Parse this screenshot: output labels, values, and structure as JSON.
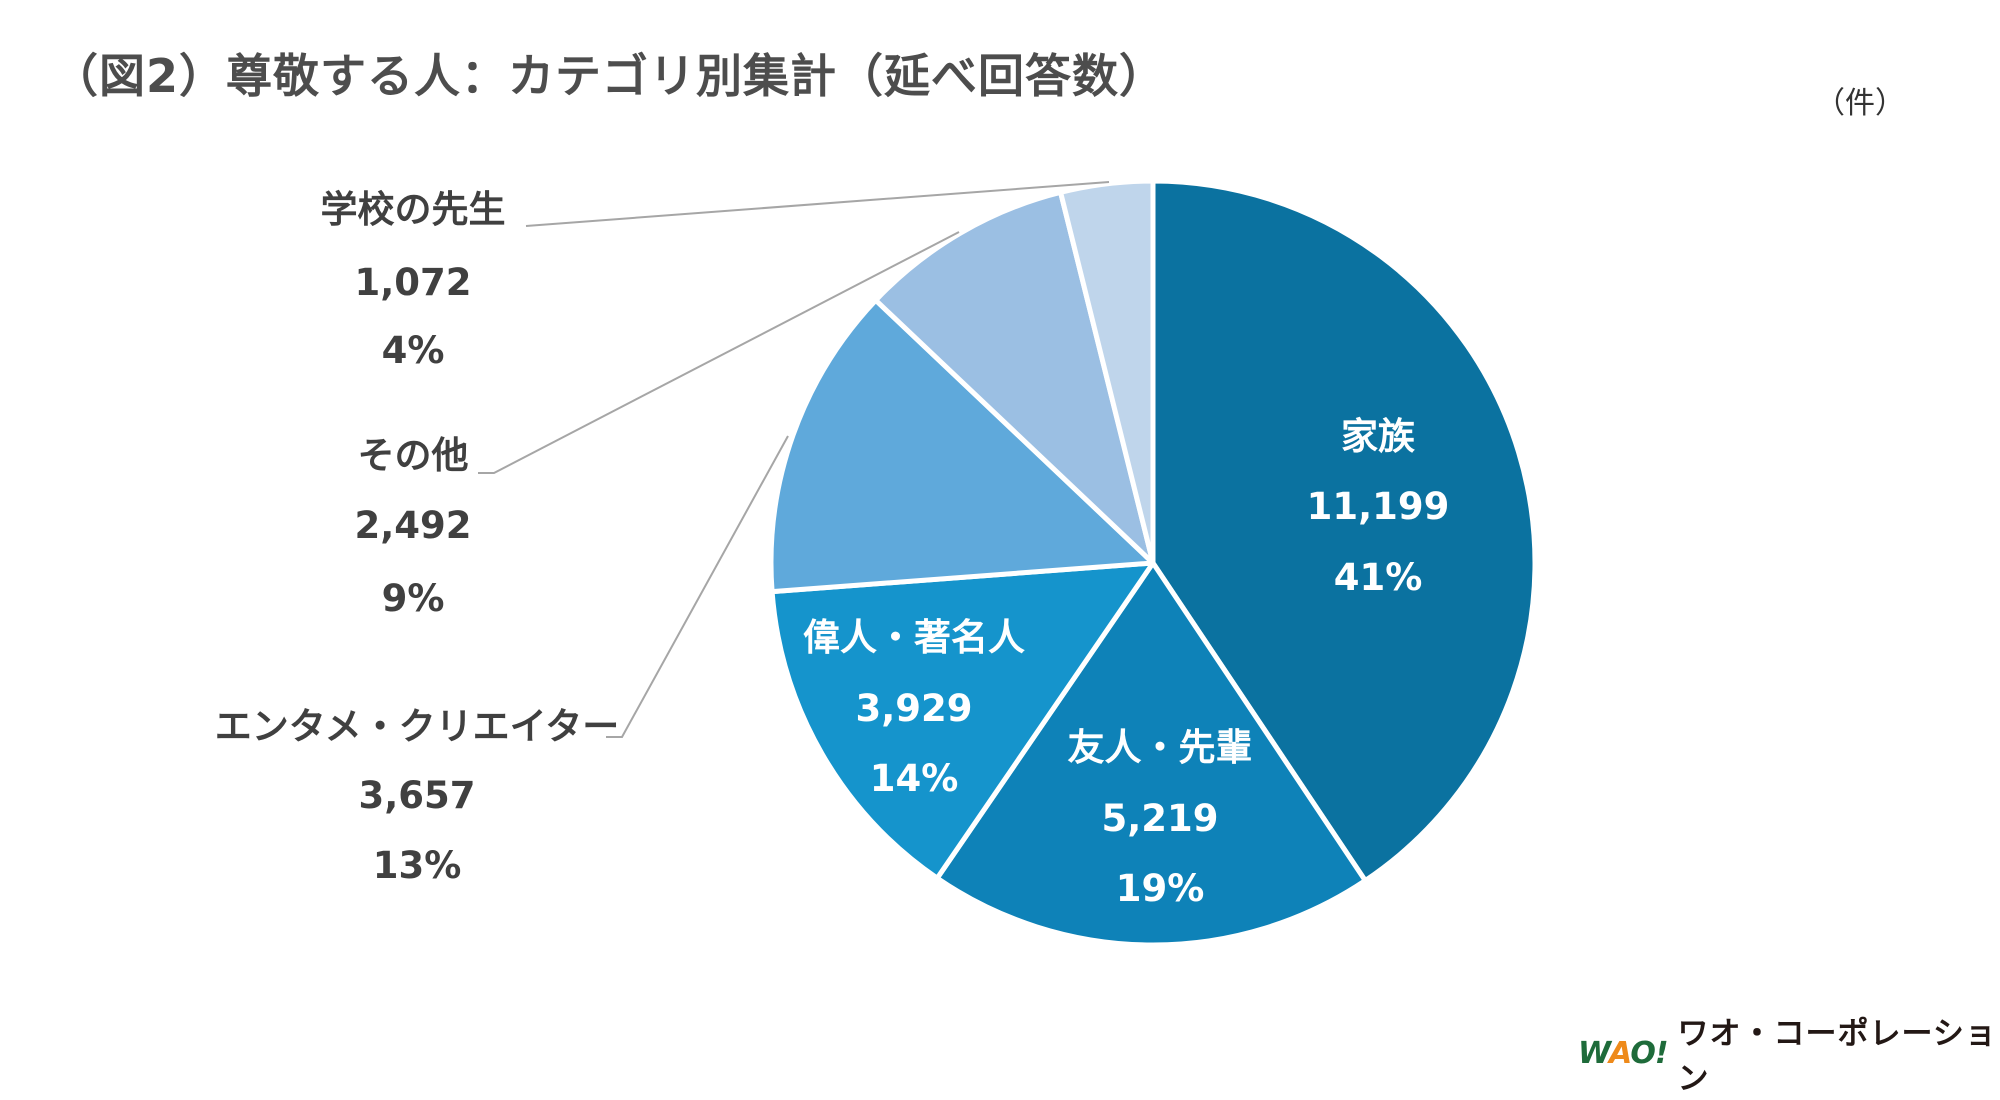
{
  "title": "（図2）尊敬する人：カテゴリ別集計（延べ回答数）",
  "unit": "（件）",
  "logo": {
    "mark": "WAO!",
    "text": "ワオ・コーポレーション"
  },
  "chart_data": {
    "type": "pie",
    "start": "12 o'clock, clockwise",
    "slices": [
      {
        "label": "家族",
        "value": 11199,
        "value_label": "11,199",
        "percent": "41%",
        "color": "#0b72a0",
        "label_pos": "inside"
      },
      {
        "label": "友人・先輩",
        "value": 5219,
        "value_label": "5,219",
        "percent": "19%",
        "color": "#0e82b8",
        "label_pos": "inside"
      },
      {
        "label": "偉人・著名人",
        "value": 3929,
        "value_label": "3,929",
        "percent": "14%",
        "color": "#1594cc",
        "label_pos": "inside"
      },
      {
        "label": "エンタメ・クリエイター",
        "value": 3657,
        "value_label": "3,657",
        "percent": "13%",
        "color": "#5fa9db",
        "label_pos": "outside"
      },
      {
        "label": "その他",
        "value": 2492,
        "value_label": "2,492",
        "percent": "9%",
        "color": "#9bbfe3",
        "label_pos": "outside"
      },
      {
        "label": "学校の先生",
        "value": 1072,
        "value_label": "1,072",
        "percent": "4%",
        "color": "#bfd5eb",
        "label_pos": "outside"
      }
    ]
  }
}
